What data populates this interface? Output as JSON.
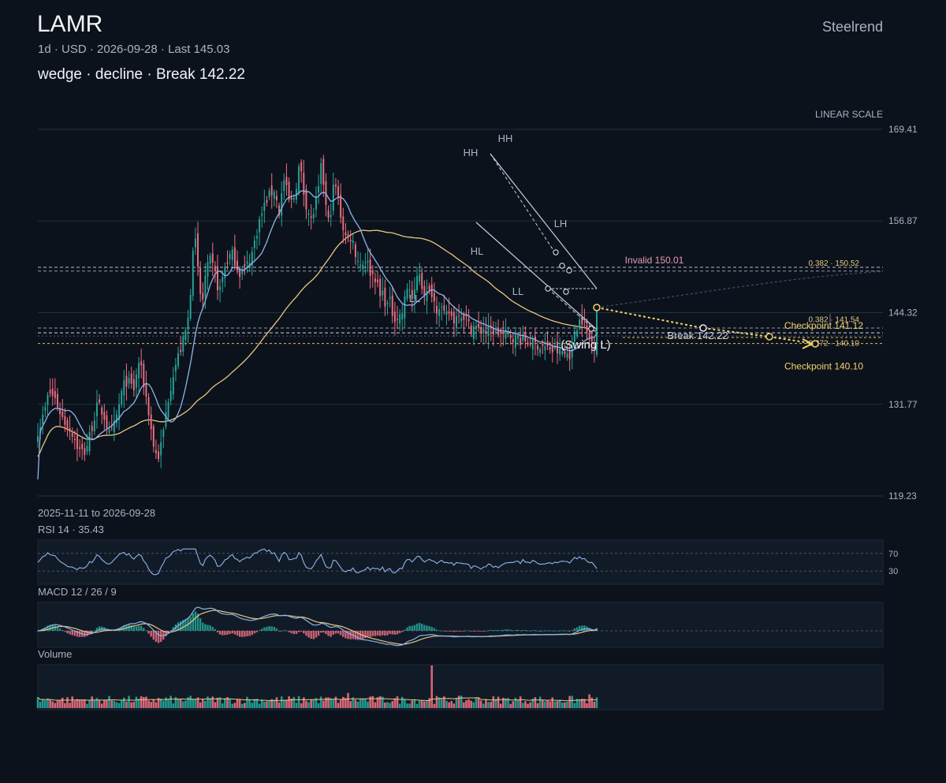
{
  "header": {
    "ticker": "LAMR",
    "subtitle": "1d · USD · 2026-09-28 · Last 145.03",
    "pattern": "wedge · decline · Break 142.22",
    "brand": "Steelrend"
  },
  "colors": {
    "background": "#0c121c",
    "up": "#26a69a",
    "down": "#ef6f82",
    "ma_fast": "#8fb4ec",
    "ma_slow": "#e6c87f",
    "grid": "#1f3339",
    "accent_yellow": "#f2d36b",
    "invalid": "#e39bb2",
    "pattern_line": "#c7cfdc"
  },
  "chart_data": [
    {
      "type": "candlestick",
      "title": "LAMR",
      "scale_label": "LINEAR SCALE",
      "date_range": "2025-11-11 to 2026-09-28",
      "y_ticks": [
        169.41,
        156.87,
        144.32,
        131.77,
        119.23
      ],
      "ylim": [
        119.23,
        169.41
      ],
      "bars": 228,
      "keypoints": [
        [
          0,
          128.2
        ],
        [
          8,
          130.5
        ],
        [
          14,
          133.5
        ],
        [
          22,
          132.5
        ],
        [
          30,
          130.2
        ],
        [
          38,
          128.6
        ],
        [
          44,
          127.8
        ],
        [
          52,
          125.5
        ],
        [
          60,
          125.2
        ],
        [
          68,
          128.5
        ],
        [
          76,
          131.8
        ],
        [
          84,
          130.2
        ],
        [
          92,
          127.2
        ],
        [
          100,
          130.1
        ],
        [
          108,
          134.2
        ],
        [
          113,
          135.0
        ],
        [
          122,
          133.8
        ],
        [
          128,
          137.6
        ],
        [
          132,
          136.0
        ],
        [
          140,
          131.2
        ],
        [
          146,
          126.5
        ],
        [
          152,
          124.2
        ],
        [
          158,
          127.0
        ],
        [
          164,
          131.8
        ],
        [
          172,
          136.2
        ],
        [
          180,
          139.0
        ],
        [
          186,
          141.0
        ],
        [
          192,
          144.2
        ],
        [
          196,
          152.0
        ],
        [
          198,
          156.1
        ],
        [
          202,
          151.2
        ],
        [
          208,
          144.8
        ],
        [
          212,
          149.0
        ],
        [
          218,
          151.5
        ],
        [
          224,
          150.0
        ],
        [
          230,
          147.0
        ],
        [
          238,
          151.0
        ],
        [
          246,
          152.5
        ],
        [
          256,
          149.8
        ],
        [
          264,
          150.5
        ],
        [
          272,
          152.6
        ],
        [
          280,
          156.5
        ],
        [
          290,
          159.8
        ],
        [
          300,
          161.2
        ],
        [
          306,
          158.0
        ],
        [
          312,
          162.6
        ],
        [
          320,
          159.0
        ],
        [
          326,
          160.5
        ],
        [
          332,
          164.8
        ],
        [
          338,
          160.2
        ],
        [
          343,
          158.2
        ],
        [
          347,
          156.8
        ],
        [
          352,
          159.2
        ],
        [
          356,
          161.0
        ],
        [
          360,
          164.8
        ],
        [
          364,
          160.1
        ],
        [
          368,
          156.5
        ],
        [
          372,
          158.6
        ],
        [
          376,
          162.5
        ],
        [
          381,
          159.8
        ],
        [
          386,
          156.5
        ],
        [
          392,
          154.2
        ],
        [
          398,
          154.8
        ],
        [
          404,
          152.0
        ],
        [
          410,
          150.8
        ],
        [
          416,
          151.8
        ],
        [
          422,
          149.8
        ],
        [
          428,
          149.2
        ],
        [
          434,
          146.5
        ],
        [
          438,
          147.2
        ],
        [
          442,
          145.0
        ],
        [
          446,
          146.0
        ],
        [
          450,
          144.2
        ],
        [
          455,
          143.5
        ],
        [
          462,
          144.2
        ],
        [
          470,
          148.5
        ],
        [
          476,
          145.5
        ],
        [
          483,
          150.5
        ],
        [
          488,
          147.5
        ],
        [
          494,
          146.8
        ],
        [
          500,
          147.2
        ],
        [
          505,
          144.8
        ],
        [
          510,
          145.6
        ],
        [
          516,
          143.6
        ],
        [
          522,
          144.4
        ],
        [
          527,
          143.3
        ],
        [
          530,
          143.5
        ],
        [
          534,
          144.6
        ],
        [
          538,
          143.9
        ],
        [
          542,
          143.9
        ],
        [
          546,
          142.7
        ],
        [
          550,
          142.1
        ],
        [
          554,
          142.6
        ],
        [
          558,
          141.9
        ],
        [
          562,
          141.8
        ],
        [
          565,
          142.3
        ],
        [
          569,
          141.6
        ],
        [
          573,
          141.8
        ],
        [
          577,
          141.9
        ],
        [
          581,
          141.4
        ],
        [
          585,
          141.6
        ],
        [
          589,
          141.2
        ],
        [
          593,
          141.4
        ],
        [
          597,
          141.1
        ],
        [
          601,
          141.2
        ],
        [
          605,
          140.8
        ],
        [
          609,
          141.0
        ],
        [
          613,
          140.5
        ],
        [
          617,
          140.7
        ],
        [
          621,
          140.2
        ],
        [
          625,
          140.4
        ],
        [
          629,
          139.9
        ],
        [
          633,
          140.1
        ],
        [
          637,
          139.6
        ],
        [
          641,
          139.8
        ],
        [
          645,
          139.3
        ],
        [
          649,
          139.5
        ],
        [
          653,
          139.0
        ],
        [
          657,
          139.2
        ],
        [
          661,
          138.8
        ],
        [
          665,
          139.0
        ],
        [
          669,
          138.6
        ],
        [
          673,
          138.8
        ],
        [
          677,
          138.5
        ],
        [
          681,
          142.0
        ],
        [
          685,
          142.8
        ],
        [
          689,
          143.6
        ],
        [
          693,
          143.0
        ],
        [
          697,
          141.2
        ],
        [
          701,
          140.5
        ],
        [
          706,
          140.1
        ],
        [
          710,
          139.6
        ],
        [
          713,
          139.9
        ],
        [
          717,
          139.4
        ],
        [
          721,
          139.7
        ],
        [
          725,
          139.3
        ],
        [
          729,
          139.6
        ],
        [
          733,
          139.4
        ],
        [
          737,
          139.8
        ],
        [
          741,
          140.6
        ],
        [
          745,
          141.2
        ],
        [
          749,
          142.1
        ],
        [
          752,
          143.2
        ],
        [
          756,
          145.03
        ]
      ],
      "moving_averages": [
        {
          "name": "MA fast",
          "color": "#8fb4ec"
        },
        {
          "name": "MA slow",
          "color": "#e6c87f"
        }
      ],
      "pattern": {
        "type": "wedge",
        "direction": "decline",
        "swing_labels": [
          {
            "text": "HH",
            "price": 164.6
          },
          {
            "text": "HH",
            "price": 167.7
          },
          {
            "text": "HL",
            "price": 152.0
          },
          {
            "text": "LL",
            "price": 145.6
          },
          {
            "text": "LL",
            "price": 145.9
          },
          {
            "text": "LH",
            "price": 155.0
          },
          {
            "text": "(Swing L)",
            "price": 139.4
          }
        ]
      },
      "levels": [
        {
          "label": "Invalid 150.01",
          "price": 150.01,
          "style": "dashed",
          "color": "#e39bb2"
        },
        {
          "label": "0.382 · 150.52",
          "price": 150.52,
          "style": "dashed",
          "color": "#e6c87f"
        },
        {
          "label": "Checkpoint 141.12",
          "price": 141.12,
          "style": "dashed",
          "color": "#f2d36b"
        },
        {
          "label": "0.382 · 141.54",
          "price": 141.54,
          "style": "dashed",
          "color": "#e6c87f"
        },
        {
          "label": "Break 142.22",
          "price": 142.22,
          "style": "dashed",
          "color": "#c7cfdc"
        },
        {
          "label": "Checkpoint 140.10",
          "price": 140.1,
          "style": "dashed",
          "color": "#f2d36b"
        },
        {
          "label": "0.272 · 140.10",
          "price": 140.1,
          "style": "dashed",
          "color": "#e6c87f"
        }
      ]
    },
    {
      "type": "line",
      "title": "RSI 14 · 35.43",
      "series": [
        {
          "name": "RSI 14",
          "last": 35.43
        }
      ],
      "y_ticks": [
        70,
        30
      ]
    },
    {
      "type": "line",
      "title": "MACD 12 / 26 / 9",
      "series": [
        {
          "name": "MACD"
        },
        {
          "name": "Signal"
        },
        {
          "name": "Histogram"
        }
      ]
    },
    {
      "type": "bar",
      "title": "Volume"
    }
  ]
}
